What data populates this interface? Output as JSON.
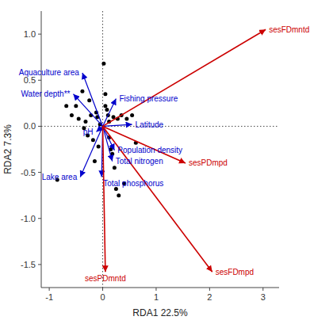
{
  "chart_data": {
    "type": "scatter",
    "xlabel": "RDA1 22.5%",
    "ylabel": "RDA2 7.3%",
    "xlim": [
      -1.15,
      3.3
    ],
    "ylim": [
      -1.75,
      1.25
    ],
    "xticks": [
      -1,
      0,
      1,
      2,
      3
    ],
    "yticks": [
      -1.5,
      {
        "value": -1.0,
        "label": "-1.0"
      },
      -0.5,
      {
        "value": 0,
        "label": "0.0"
      },
      0.5,
      {
        "value": 1.0,
        "label": "1.0"
      }
    ],
    "grid": false,
    "hlines": [
      0
    ],
    "vlines": [
      0
    ],
    "series": [
      {
        "type": "scatter",
        "color": "#000000",
        "marker": "circle",
        "x": [
          -0.85,
          -0.68,
          -0.58,
          -0.5,
          -0.45,
          -0.38,
          -0.35,
          -0.32,
          -0.28,
          -0.25,
          -0.22,
          -0.18,
          -0.15,
          -0.12,
          -0.1,
          -0.08,
          -0.05,
          0.02,
          0.05,
          0.05,
          0.08,
          0.1,
          0.12,
          0.12,
          0.15,
          0.18,
          0.2,
          0.22,
          0.25,
          0.28,
          0.3,
          0.35,
          0.4,
          0.45,
          0.55,
          0.62
        ],
        "values": [
          -0.58,
          0.22,
          0.12,
          0.22,
          0.08,
          0.38,
          -0.02,
          0.05,
          -0.1,
          0.28,
          0.12,
          -0.15,
          -0.38,
          0.15,
          0.1,
          -0.22,
          0.02,
          0.68,
          0.35,
          0.22,
          0.18,
          0.12,
          0.05,
          -0.12,
          -0.25,
          -0.3,
          0.1,
          -0.45,
          -0.68,
          0.08,
          -0.75,
          0.12,
          -0.62,
          0.08,
          0.12,
          -0.18
        ]
      },
      {
        "type": "arrow",
        "color": "#0000cc",
        "labels": [
          "Aquaculture area",
          "Water depth**",
          "Fishing pressure",
          "Latitude",
          "pH",
          "Population density",
          "Total nitrogen",
          "Total phosphorus",
          "Lake area"
        ],
        "x0": [
          0,
          0,
          0,
          0,
          0,
          0,
          0,
          0,
          0
        ],
        "y0": [
          0,
          0,
          0,
          0,
          0,
          0,
          0,
          0,
          0
        ],
        "x": [
          -0.38,
          -0.55,
          0.25,
          0.55,
          -0.12,
          0.22,
          0.18,
          -0.02,
          -0.42
        ],
        "values": [
          0.58,
          0.35,
          0.3,
          0.02,
          -0.06,
          -0.26,
          -0.38,
          -0.55,
          -0.55
        ]
      },
      {
        "type": "arrow",
        "color": "#cc0000",
        "labels": [
          "sesFDmntd",
          "sesPDmntd",
          "sesPDmpd",
          "sesFDmpd"
        ],
        "x0": [
          0,
          0,
          0,
          0
        ],
        "y0": [
          0,
          0,
          0,
          0
        ],
        "x": [
          3.05,
          0.05,
          1.55,
          2.05
        ],
        "values": [
          1.05,
          -1.58,
          -0.4,
          -1.58
        ]
      }
    ]
  }
}
